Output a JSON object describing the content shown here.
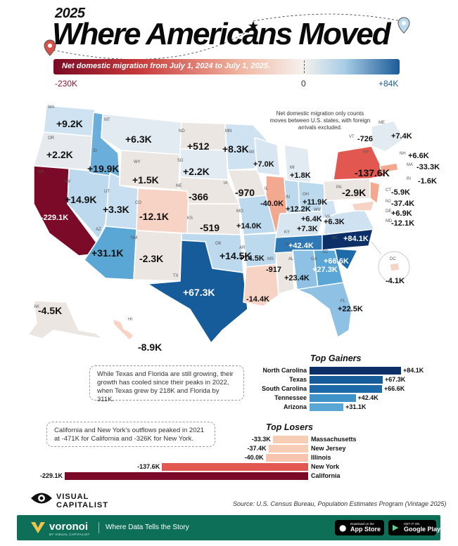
{
  "header": {
    "year": "2025",
    "title": "Where Americans Moved",
    "scale_text": "Net domestic migration from July 1, 2024 to July 1, 2025.",
    "scale_min": "-230K",
    "scale_mid": "0",
    "scale_max": "+84K"
  },
  "map_note": "Net domestic migration only counts moves between U.S. states, with foreign arrivals excluded.",
  "states": [
    {
      "abbr": "WA",
      "value": "+9.2K"
    },
    {
      "abbr": "OR",
      "value": "+2.2K"
    },
    {
      "abbr": "CA",
      "value": "-229.1K"
    },
    {
      "abbr": "NV",
      "value": "+14.9K"
    },
    {
      "abbr": "ID",
      "value": "+19.9K"
    },
    {
      "abbr": "MT",
      "value": "+6.3K"
    },
    {
      "abbr": "WY",
      "value": "+1.5K"
    },
    {
      "abbr": "UT",
      "value": "+3.3K"
    },
    {
      "abbr": "AZ",
      "value": "+31.1K"
    },
    {
      "abbr": "CO",
      "value": "-12.1K"
    },
    {
      "abbr": "NM",
      "value": "-2.3K"
    },
    {
      "abbr": "ND",
      "value": "+512"
    },
    {
      "abbr": "SD",
      "value": "+2.2K"
    },
    {
      "abbr": "NE",
      "value": "-366"
    },
    {
      "abbr": "KS",
      "value": "-519"
    },
    {
      "abbr": "OK",
      "value": "+14.5K"
    },
    {
      "abbr": "TX",
      "value": "+67.3K"
    },
    {
      "abbr": "MN",
      "value": "+8.3K"
    },
    {
      "abbr": "IA",
      "value": "-970"
    },
    {
      "abbr": "MO",
      "value": "+14.0K"
    },
    {
      "abbr": "AR",
      "value": "+14.5K"
    },
    {
      "abbr": "LA",
      "value": "-14.4K"
    },
    {
      "abbr": "WI",
      "value": "+7.0K"
    },
    {
      "abbr": "IL",
      "value": "-40.0K"
    },
    {
      "abbr": "MS",
      "value": "-917"
    },
    {
      "abbr": "MI",
      "value": "+1.8K"
    },
    {
      "abbr": "IN",
      "value": "+12.2K"
    },
    {
      "abbr": "OH",
      "value": "+11.9K"
    },
    {
      "abbr": "KY",
      "value": "+7.3K"
    },
    {
      "abbr": "TN",
      "value": "+42.4K"
    },
    {
      "abbr": "AL",
      "value": "+23.4K"
    },
    {
      "abbr": "GA",
      "value": "+27.3K"
    },
    {
      "abbr": "FL",
      "value": "+22.5K"
    },
    {
      "abbr": "SC",
      "value": "+66.6K"
    },
    {
      "abbr": "NC",
      "value": "+84.1K"
    },
    {
      "abbr": "VA",
      "value": "+6.3K"
    },
    {
      "abbr": "WV",
      "value": "+6.4K"
    },
    {
      "abbr": "PA",
      "value": "-2.9K"
    },
    {
      "abbr": "NY",
      "value": "-137.6K"
    },
    {
      "abbr": "ME",
      "value": "+7.4K"
    },
    {
      "abbr": "VT",
      "value": "-726"
    },
    {
      "abbr": "NH",
      "value": "+6.6K"
    },
    {
      "abbr": "MA",
      "value": "-33.3K"
    },
    {
      "abbr": "RI",
      "value": "-1.6K"
    },
    {
      "abbr": "CT",
      "value": "-5.9K"
    },
    {
      "abbr": "NJ",
      "value": "-37.4K"
    },
    {
      "abbr": "DE",
      "value": "+6.9K"
    },
    {
      "abbr": "MD",
      "value": "-12.1K"
    },
    {
      "abbr": "DC",
      "value": "-4.1K"
    },
    {
      "abbr": "AK",
      "value": "-4.5K"
    },
    {
      "abbr": "HI",
      "value": "-8.9K"
    }
  ],
  "callouts": {
    "texas_florida": "While Texas and Florida are still growing, their growth has cooled since their peaks in 2022, when Texas grew by 218K and Florida by 311K.",
    "ca_ny": "California and New York's outflows peaked in 2021 at -471K for California and -326K for New York."
  },
  "chart_data": [
    {
      "type": "bar",
      "title": "Top Gainers",
      "categories": [
        "North Carolina",
        "Texas",
        "South Carolina",
        "Tennessee",
        "Arizona"
      ],
      "values": [
        84.1,
        67.3,
        66.6,
        42.4,
        31.1
      ],
      "value_labels": [
        "+84.1K",
        "+67.3K",
        "+66.6K",
        "+42.4K",
        "+31.1K"
      ],
      "colors": [
        "#0b2f66",
        "#165c9b",
        "#1e6aa8",
        "#3f93c9",
        "#5aa7d6"
      ]
    },
    {
      "type": "bar",
      "title": "Top Losers",
      "categories": [
        "Massachusetts",
        "New Jersey",
        "Illinois",
        "New York",
        "California"
      ],
      "values": [
        -33.3,
        -37.4,
        -40.0,
        -137.6,
        -229.1
      ],
      "value_labels": [
        "-33.3K",
        "-37.4K",
        "-40.0K",
        "-137.6K",
        "-229.1K"
      ],
      "colors": [
        "#f8cdb6",
        "#f8cdb6",
        "#f8c4ad",
        "#e2574f",
        "#7a0a28"
      ]
    }
  ],
  "branding": {
    "logo_line1": "VISUAL",
    "logo_line2": "CAPITALIST",
    "source": "Source: U.S. Census Bureau, Population Estimates Program (Vintage 2025)",
    "voronoi": "voronoi",
    "voronoi_sub": "BY VISUAL CAPITALIST",
    "tagline": "Where Data Tells the Story",
    "appstore_small": "Download on the",
    "appstore_big": "App Store",
    "googleplay_small": "GET IT ON",
    "googleplay_big": "Google Play"
  },
  "colors": {
    "strong_loss": "#7a0a28",
    "loss": "#e2574f",
    "mild_loss": "#f6d3c4",
    "neutral": "#ece6e2",
    "mild_gain": "#c7dff0",
    "gain": "#5aa7d6",
    "strong_gain": "#0b2f66",
    "footer": "#0e6f59"
  }
}
